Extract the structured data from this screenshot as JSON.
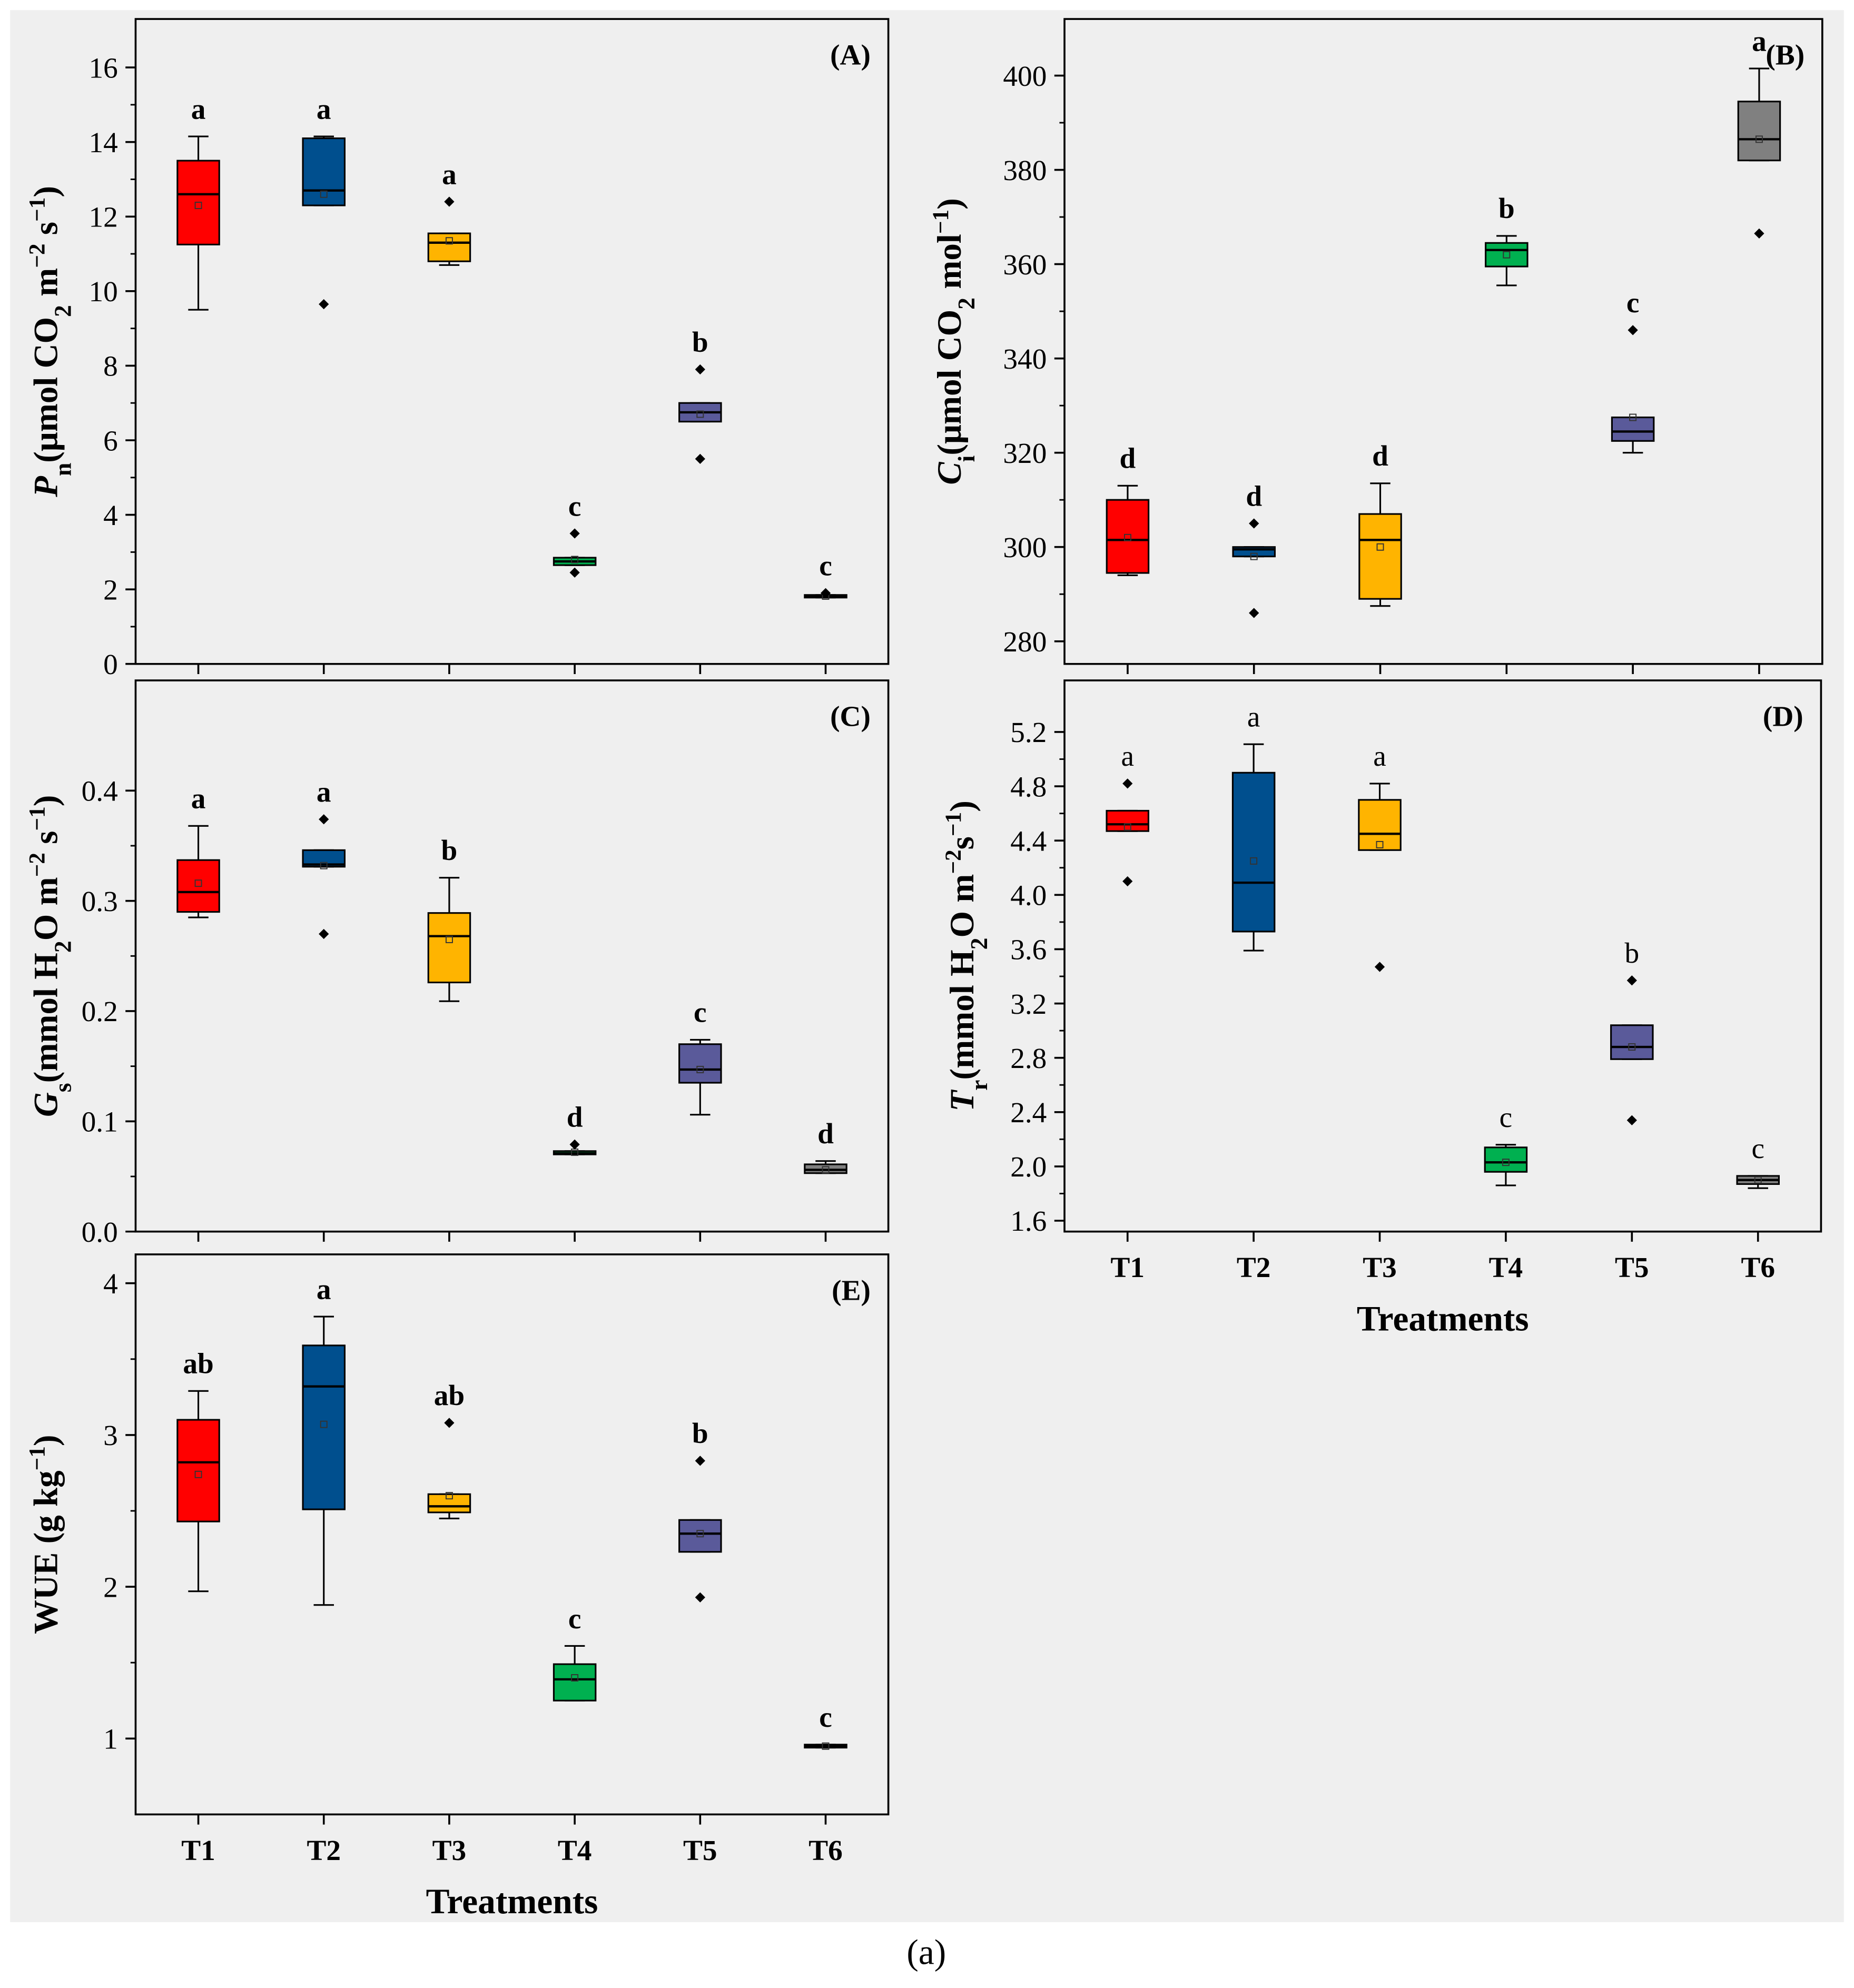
{
  "caption": "(a)",
  "colors": {
    "T1": "#FF0000",
    "T2": "#004F8E",
    "T3": "#FFB400",
    "T4": "#00B050",
    "T5": "#5A5A9A",
    "T6": "#808080",
    "background": "#EFEFEF"
  },
  "categories": [
    "T1",
    "T2",
    "T3",
    "T4",
    "T5",
    "T6"
  ],
  "xlabel": "Treatments",
  "chart_data": [
    {
      "type": "box",
      "panel": "(A)",
      "ylim": [
        0,
        17.3
      ],
      "ticks": [
        0,
        2,
        4,
        6,
        8,
        10,
        12,
        14,
        16
      ],
      "tick_labels": [
        "0",
        "2",
        "4",
        "6",
        "8",
        "10",
        "12",
        "14",
        "16"
      ],
      "ylabel": [
        {
          "t": "P",
          "i": 1
        },
        {
          "t": "n",
          "sub": 1
        },
        {
          "t": "(μmol CO"
        },
        {
          "t": "2",
          "sub": 1
        },
        {
          "t": " m"
        },
        {
          "t": "−2",
          "sup": 1
        },
        {
          "t": " s"
        },
        {
          "t": "−1",
          "sup": 1
        },
        {
          "t": ")"
        }
      ],
      "show_x": false,
      "boxes": [
        {
          "lo": 9.5,
          "q1": 11.25,
          "med": 12.6,
          "q3": 13.5,
          "hi": 14.15,
          "mean": 12.3,
          "out": [],
          "letter": "a"
        },
        {
          "lo": 12.3,
          "q1": 12.3,
          "med": 12.7,
          "q3": 14.1,
          "hi": 14.15,
          "mean": 12.6,
          "out": [
            9.65
          ],
          "letter": "a"
        },
        {
          "lo": 10.7,
          "q1": 10.8,
          "med": 11.3,
          "q3": 11.55,
          "hi": 11.55,
          "mean": 11.35,
          "out": [
            12.4
          ],
          "letter": "a"
        },
        {
          "lo": 2.65,
          "q1": 2.65,
          "med": 2.75,
          "q3": 2.85,
          "hi": 2.85,
          "mean": 2.8,
          "out": [
            3.5,
            2.45
          ],
          "letter": "c"
        },
        {
          "lo": 6.5,
          "q1": 6.5,
          "med": 6.75,
          "q3": 7.0,
          "hi": 7.0,
          "mean": 6.7,
          "out": [
            7.9,
            5.5
          ],
          "letter": "b"
        },
        {
          "lo": 1.78,
          "q1": 1.78,
          "med": 1.8,
          "q3": 1.85,
          "hi": 1.85,
          "mean": 1.82,
          "out": [
            1.9
          ],
          "letter": "c"
        }
      ]
    },
    {
      "type": "box",
      "panel": "(B)",
      "ylim": [
        275.2,
        412
      ],
      "ticks": [
        280,
        300,
        320,
        340,
        360,
        380,
        400
      ],
      "tick_labels": [
        "280",
        "300",
        "320",
        "340",
        "360",
        "380",
        "400"
      ],
      "ylabel": [
        {
          "t": "C",
          "i": 1
        },
        {
          "t": "i",
          "sub": 1
        },
        {
          "t": "(μmol CO"
        },
        {
          "t": "2",
          "sub": 1
        },
        {
          "t": " mol"
        },
        {
          "t": "−1",
          "sup": 1
        },
        {
          "t": ")"
        }
      ],
      "show_x": false,
      "boxes": [
        {
          "lo": 294,
          "q1": 294.5,
          "med": 301.5,
          "q3": 310,
          "hi": 313,
          "mean": 302,
          "out": [],
          "letter": "d"
        },
        {
          "lo": 298,
          "q1": 298,
          "med": 299.5,
          "q3": 300,
          "hi": 300,
          "mean": 298,
          "out": [
            305,
            286
          ],
          "letter": "d"
        },
        {
          "lo": 287.5,
          "q1": 289,
          "med": 301.5,
          "q3": 307,
          "hi": 313.5,
          "mean": 300,
          "out": [],
          "letter": "d"
        },
        {
          "lo": 355.5,
          "q1": 359.5,
          "med": 363,
          "q3": 364.5,
          "hi": 366,
          "mean": 362,
          "out": [],
          "letter": "b"
        },
        {
          "lo": 320,
          "q1": 322.5,
          "med": 324.5,
          "q3": 327.5,
          "hi": 327.5,
          "mean": 327.5,
          "out": [
            346
          ],
          "letter": "c"
        },
        {
          "lo": 382,
          "q1": 382,
          "med": 386.5,
          "q3": 394.5,
          "hi": 401.5,
          "mean": 386.5,
          "out": [
            366.5
          ],
          "letter": "a"
        }
      ]
    },
    {
      "type": "box",
      "panel": "(C)",
      "ylim": [
        0,
        0.5
      ],
      "ticks": [
        0,
        0.1,
        0.2,
        0.3,
        0.4
      ],
      "tick_labels": [
        "0.0",
        "0.1",
        "0.2",
        "0.3",
        "0.4"
      ],
      "ylabel": [
        {
          "t": "G",
          "i": 1
        },
        {
          "t": "s",
          "sub": 1
        },
        {
          "t": "(mmol H"
        },
        {
          "t": "2",
          "sub": 1
        },
        {
          "t": "O m"
        },
        {
          "t": "−2",
          "sup": 1
        },
        {
          "t": " s"
        },
        {
          "t": "−1",
          "sup": 1
        },
        {
          "t": ")"
        }
      ],
      "show_x": false,
      "boxes": [
        {
          "lo": 0.285,
          "q1": 0.29,
          "med": 0.308,
          "q3": 0.337,
          "hi": 0.368,
          "mean": 0.316,
          "out": [],
          "letter": "a"
        },
        {
          "lo": 0.331,
          "q1": 0.331,
          "med": 0.333,
          "q3": 0.346,
          "hi": 0.346,
          "mean": 0.332,
          "out": [
            0.374,
            0.27
          ],
          "letter": "a"
        },
        {
          "lo": 0.209,
          "q1": 0.226,
          "med": 0.268,
          "q3": 0.289,
          "hi": 0.321,
          "mean": 0.265,
          "out": [],
          "letter": "b"
        },
        {
          "lo": 0.07,
          "q1": 0.07,
          "med": 0.071,
          "q3": 0.073,
          "hi": 0.073,
          "mean": 0.072,
          "out": [
            0.079
          ],
          "letter": "d"
        },
        {
          "lo": 0.106,
          "q1": 0.135,
          "med": 0.147,
          "q3": 0.17,
          "hi": 0.174,
          "mean": 0.147,
          "out": [],
          "letter": "c"
        },
        {
          "lo": 0.053,
          "q1": 0.053,
          "med": 0.056,
          "q3": 0.061,
          "hi": 0.064,
          "mean": 0.056,
          "out": [],
          "letter": "d"
        }
      ]
    },
    {
      "type": "box",
      "panel": "(D)",
      "ylim": [
        1.52,
        5.58
      ],
      "ticks": [
        1.6,
        2.0,
        2.4,
        2.8,
        3.2,
        3.6,
        4.0,
        4.4,
        4.8,
        5.2
      ],
      "tick_labels": [
        "1.6",
        "2.0",
        "2.4",
        "2.8",
        "3.2",
        "3.6",
        "4.0",
        "4.4",
        "4.8",
        "5.2"
      ],
      "ylabel": [
        {
          "t": "T",
          "i": 1
        },
        {
          "t": "r",
          "sub": 1
        },
        {
          "t": "(mmol H"
        },
        {
          "t": "2",
          "sub": 1
        },
        {
          "t": "O m"
        },
        {
          "t": "−2",
          "sup": 1
        },
        {
          "t": "s"
        },
        {
          "t": "−1",
          "sup": 1
        },
        {
          "t": ")"
        }
      ],
      "show_x": true,
      "bold_letters": false,
      "boxes": [
        {
          "lo": 4.47,
          "q1": 4.47,
          "med": 4.52,
          "q3": 4.62,
          "hi": 4.62,
          "mean": 4.5,
          "out": [
            4.82,
            4.1
          ],
          "letter": "a"
        },
        {
          "lo": 3.59,
          "q1": 3.73,
          "med": 4.09,
          "q3": 4.9,
          "hi": 5.11,
          "mean": 4.25,
          "out": [],
          "letter": "a"
        },
        {
          "lo": 4.33,
          "q1": 4.33,
          "med": 4.45,
          "q3": 4.7,
          "hi": 4.82,
          "mean": 4.37,
          "out": [
            3.47
          ],
          "letter": "a"
        },
        {
          "lo": 1.86,
          "q1": 1.96,
          "med": 2.03,
          "q3": 2.14,
          "hi": 2.16,
          "mean": 2.03,
          "out": [],
          "letter": "c"
        },
        {
          "lo": 2.79,
          "q1": 2.79,
          "med": 2.88,
          "q3": 3.04,
          "hi": 3.04,
          "mean": 2.88,
          "out": [
            3.37,
            2.34
          ],
          "letter": "b"
        },
        {
          "lo": 1.84,
          "q1": 1.87,
          "med": 1.9,
          "q3": 1.93,
          "hi": 1.93,
          "mean": 1.9,
          "out": [],
          "letter": "c"
        }
      ]
    },
    {
      "type": "box",
      "panel": "(E)",
      "ylim": [
        0.5,
        4.19
      ],
      "ticks": [
        1,
        2,
        3,
        4
      ],
      "tick_labels": [
        "1",
        "2",
        "3",
        "4"
      ],
      "ylabel": [
        {
          "t": "WUE (g kg"
        },
        {
          "t": "−1",
          "sup": 1
        },
        {
          "t": ")"
        }
      ],
      "show_x": true,
      "boxes": [
        {
          "lo": 1.97,
          "q1": 2.43,
          "med": 2.82,
          "q3": 3.1,
          "hi": 3.29,
          "mean": 2.74,
          "out": [],
          "letter": "ab"
        },
        {
          "lo": 1.88,
          "q1": 2.51,
          "med": 3.32,
          "q3": 3.59,
          "hi": 3.78,
          "mean": 3.07,
          "out": [],
          "letter": "a"
        },
        {
          "lo": 2.45,
          "q1": 2.49,
          "med": 2.53,
          "q3": 2.61,
          "hi": 2.61,
          "mean": 2.6,
          "out": [
            3.08
          ],
          "letter": "ab"
        },
        {
          "lo": 1.25,
          "q1": 1.25,
          "med": 1.39,
          "q3": 1.49,
          "hi": 1.61,
          "mean": 1.4,
          "out": [],
          "letter": "c"
        },
        {
          "lo": 2.23,
          "q1": 2.23,
          "med": 2.35,
          "q3": 2.44,
          "hi": 2.44,
          "mean": 2.35,
          "out": [
            2.83,
            1.93
          ],
          "letter": "b"
        },
        {
          "lo": 0.94,
          "q1": 0.94,
          "med": 0.95,
          "q3": 0.96,
          "hi": 0.96,
          "mean": 0.95,
          "out": [],
          "letter": "c"
        }
      ]
    }
  ]
}
